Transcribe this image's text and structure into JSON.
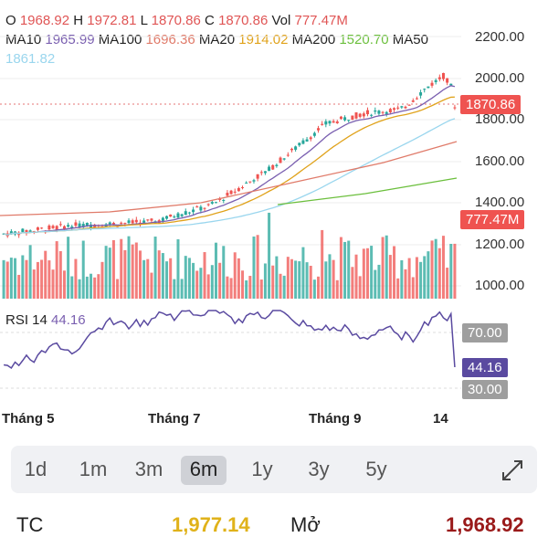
{
  "ohlc": {
    "o_label": "O",
    "o_value": "1968.92",
    "h_label": "H",
    "h_value": "1972.81",
    "l_label": "L",
    "l_value": "1870.86",
    "c_label": "C",
    "c_value": "1870.86",
    "vol_label": "Vol",
    "vol_value": "777.47M"
  },
  "ma": {
    "ma10_label": "MA10",
    "ma10_value": "1965.99",
    "ma100_label": "MA100",
    "ma100_value": "1696.36",
    "ma20_label": "MA20",
    "ma20_value": "1914.02",
    "ma200_label": "MA200",
    "ma200_value": "1520.70",
    "ma50_label": "MA50",
    "ma50_value": "1861.82"
  },
  "price_axis": [
    "2200.00",
    "2000.00",
    "1800.00",
    "1600.00",
    "1400.00",
    "1200.00",
    "1000.00"
  ],
  "price_tag": "1870.86",
  "vol_tag": "777.47M",
  "rsi": {
    "label": "RSI 14",
    "value": "44.16",
    "upper": "70.00",
    "lower": "30.00"
  },
  "months": [
    "Tháng 5",
    "Tháng 7",
    "Tháng 9",
    "14"
  ],
  "tabs": [
    "1d",
    "1m",
    "3m",
    "6m",
    "1y",
    "3y",
    "5y"
  ],
  "active_tab": "6m",
  "footer": {
    "tc_label": "TC",
    "tc_value": "1,977.14",
    "open_label": "Mở",
    "open_value": "1,968.92"
  },
  "colors": {
    "up": "#26a69a",
    "down": "#ef5350",
    "rsi_line": "#5a4aa0",
    "tc": "#e0b21a",
    "open": "#9a1a1a",
    "active_tab_bg": "#cfd1d6"
  },
  "icons": {
    "expand": "expand-arrows-icon"
  }
}
